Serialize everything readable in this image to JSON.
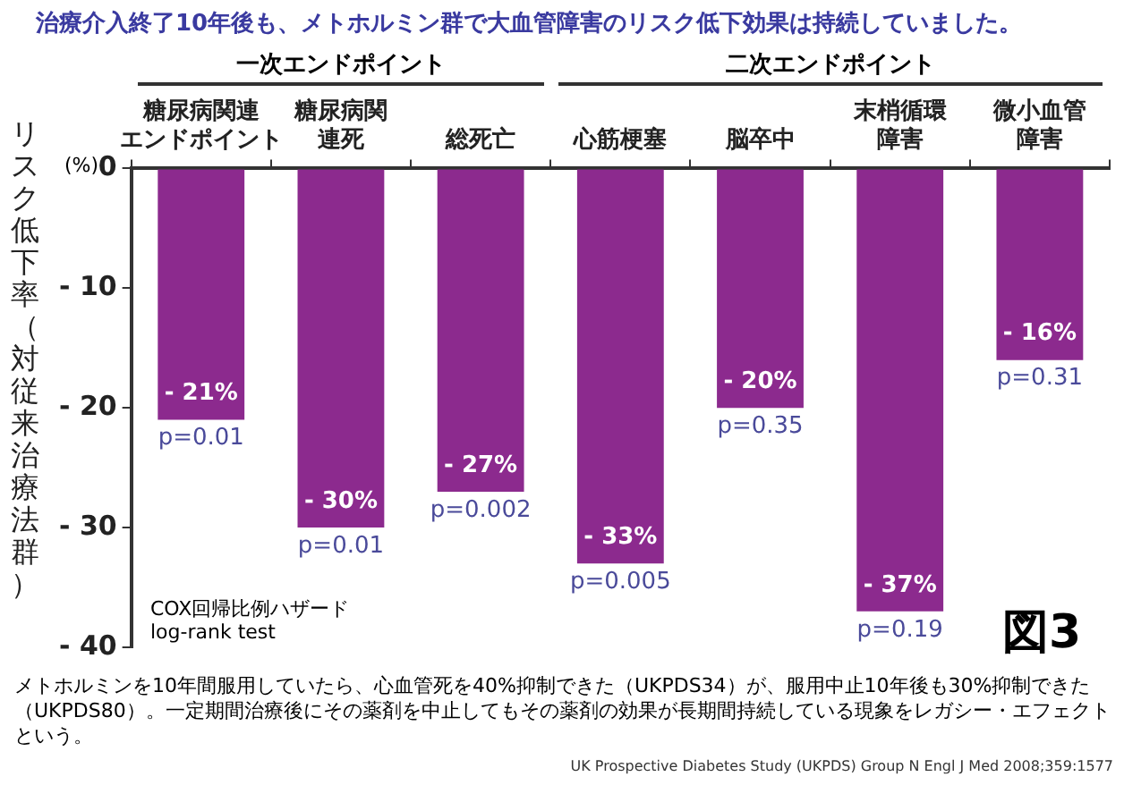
{
  "chart_data": {
    "type": "bar",
    "title": "治療介入終了10年後も、メトホルミン群で大血管障害のリスク低下効果は持続していました。",
    "ylabel": "リスク低下率（対従来治療法群）",
    "categories": [
      "糖尿病関連エンドポイント",
      "糖尿病関連死",
      "総死亡",
      "心筋梗塞",
      "脳卒中",
      "末梢循環障害",
      "微小血管障害"
    ],
    "values": [
      -21,
      -30,
      -27,
      -33,
      -20,
      -37,
      -16
    ],
    "color": "#8c2a8e",
    "value_labels": [
      "- 21%",
      "- 30%",
      "- 27%",
      "- 33%",
      "- 20%",
      "- 37%",
      "- 16%"
    ],
    "ylim": [
      -40,
      0
    ],
    "yticks": [
      {
        "value": 0,
        "label": "0"
      },
      {
        "value": -10,
        "label": "- 10"
      },
      {
        "value": -20,
        "label": "- 20"
      },
      {
        "value": -30,
        "label": "- 30"
      },
      {
        "value": -40,
        "label": "- 40"
      }
    ],
    "grid": false,
    "annotations": [
      "一次エンドポイント",
      "二次エンドポイント",
      "(%)",
      "COX回帰比例ハザード\nlog-rank test",
      "図3",
      "メトホルミンを10年間服用していたら、心血管死を40%抑制できた（UKPDS34）が、服用中止10年後も30%抑制できた（UKPDS80）。一定期間治療後にその薬剤を中止してもその薬剤の効果が長期間持続している現象をレガシー・エフェクトという。",
      "UK Prospective Diabetes Study (UKPDS) Group N Engl J Med 2008;359:1577",
      "p=0.01",
      "p=0.01",
      "p=0.002",
      "p=0.005",
      "p=0.35",
      "p=0.19",
      "p=0.31"
    ]
  }
}
